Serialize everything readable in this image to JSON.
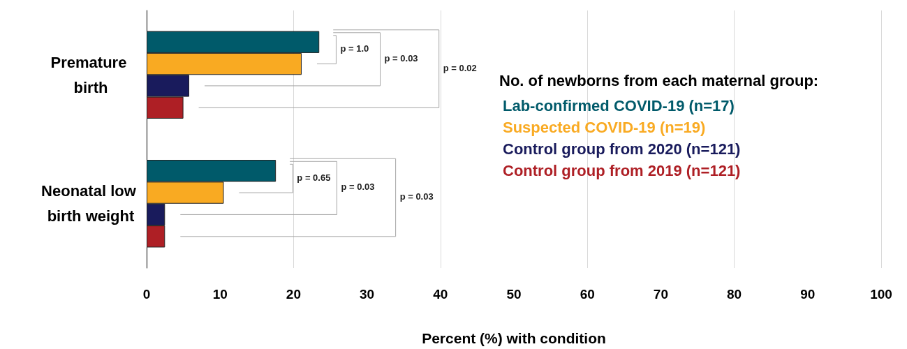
{
  "chart_data": {
    "type": "bar",
    "orientation": "horizontal",
    "xlabel": "Percent (%) with condition",
    "legend_title": "No. of newborns from each maternal group:",
    "categories": [
      "Premature birth",
      "Neonatal low birth weight"
    ],
    "series": [
      {
        "name": "Lab-confirmed COVID-19 (n=17)",
        "color": "#005a6a",
        "values": [
          23.5,
          17.6
        ]
      },
      {
        "name": "Suspected COVID-19 (n=19)",
        "color": "#f9aa22",
        "values": [
          21.1,
          10.5
        ]
      },
      {
        "name": "Control group from 2020 (n=121)",
        "color": "#191b5c",
        "values": [
          5.8,
          2.5
        ]
      },
      {
        "name": "Control group from 2019 (n=121)",
        "color": "#ae1f25",
        "values": [
          5.0,
          2.5
        ]
      }
    ],
    "xlim": [
      0,
      100
    ],
    "xticks": [
      0,
      10,
      20,
      30,
      40,
      50,
      60,
      70,
      80,
      90,
      100
    ],
    "grid": "x",
    "legend": "right",
    "annotations": [
      "p = 1.0",
      "p = 0.03",
      "p = 0.02",
      "p = 0.65",
      "p = 0.03",
      "p = 0.03"
    ]
  }
}
